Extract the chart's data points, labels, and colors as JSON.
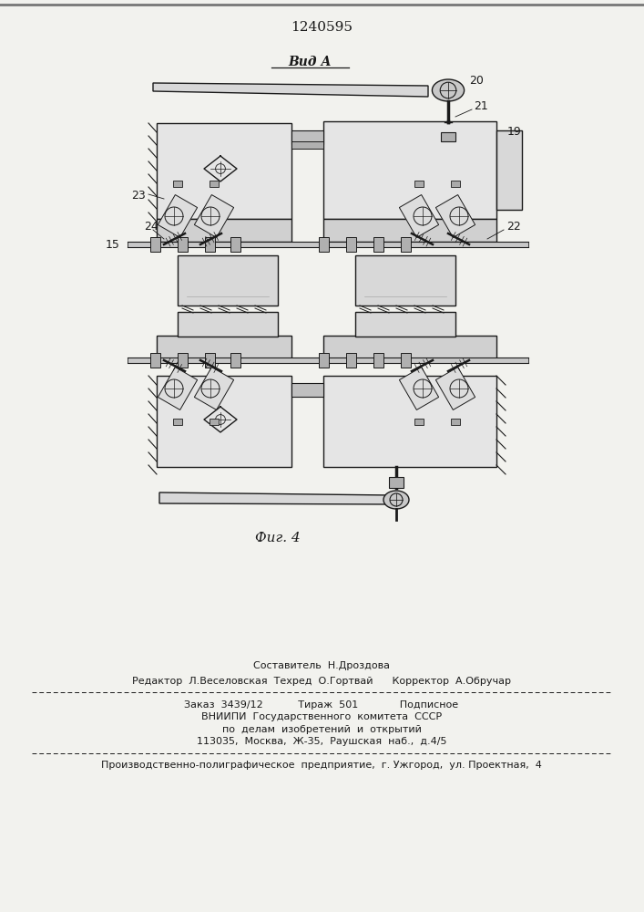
{
  "patent_number": "1240595",
  "view_label": "Вид А",
  "fig_label": "Фиг. 4",
  "footer_line1": "Составитель  Н.Дроздова",
  "footer_line2": "Редактор  Л.Веселовская  Техред  О.Гортвай      Корректор  А.Обручар",
  "footer_line3": "Заказ  3439/12           Тираж  501             Подписное",
  "footer_line4": "ВНИИПИ  Государственного  комитета  СССР",
  "footer_line5": "по  делам  изобретений  и  открытий",
  "footer_line6": "113035,  Москва,  Ж-35,  Раушская  наб.,  д.4/5",
  "footer_line7": "Производственно-полиграфическое  предприятие,  г. Ужгород,  ул. Проектная,  4",
  "bg_color": "#f2f2ee",
  "line_color": "#1a1a1a"
}
